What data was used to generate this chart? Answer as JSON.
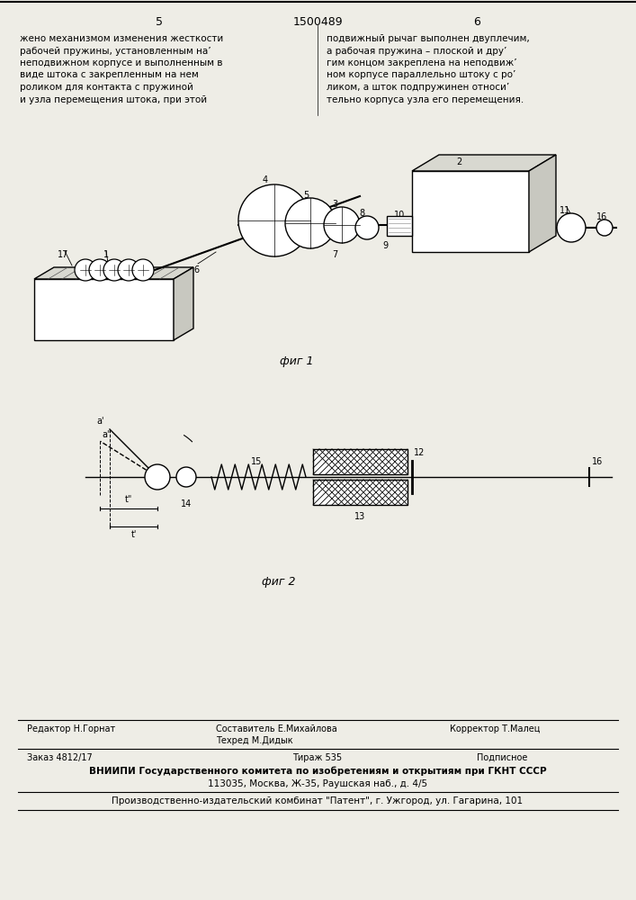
{
  "bg_color": "#eeede6",
  "title_center": "1500489",
  "page_left": "5",
  "page_right": "6",
  "fig1_caption": "фиг 1",
  "fig2_caption": "фиг 2",
  "footer_vnipi": "ВНИИПИ Государственного комитета по изобретениям и открытиям при ГКНТ СССР",
  "footer_addr": "113035, Москва, Ж-35, Раушская наб., д. 4/5",
  "footer_patent": "Производственно-издательский комбинат \"Патент\", г. Ужгород, ул. Гагарина, 101"
}
